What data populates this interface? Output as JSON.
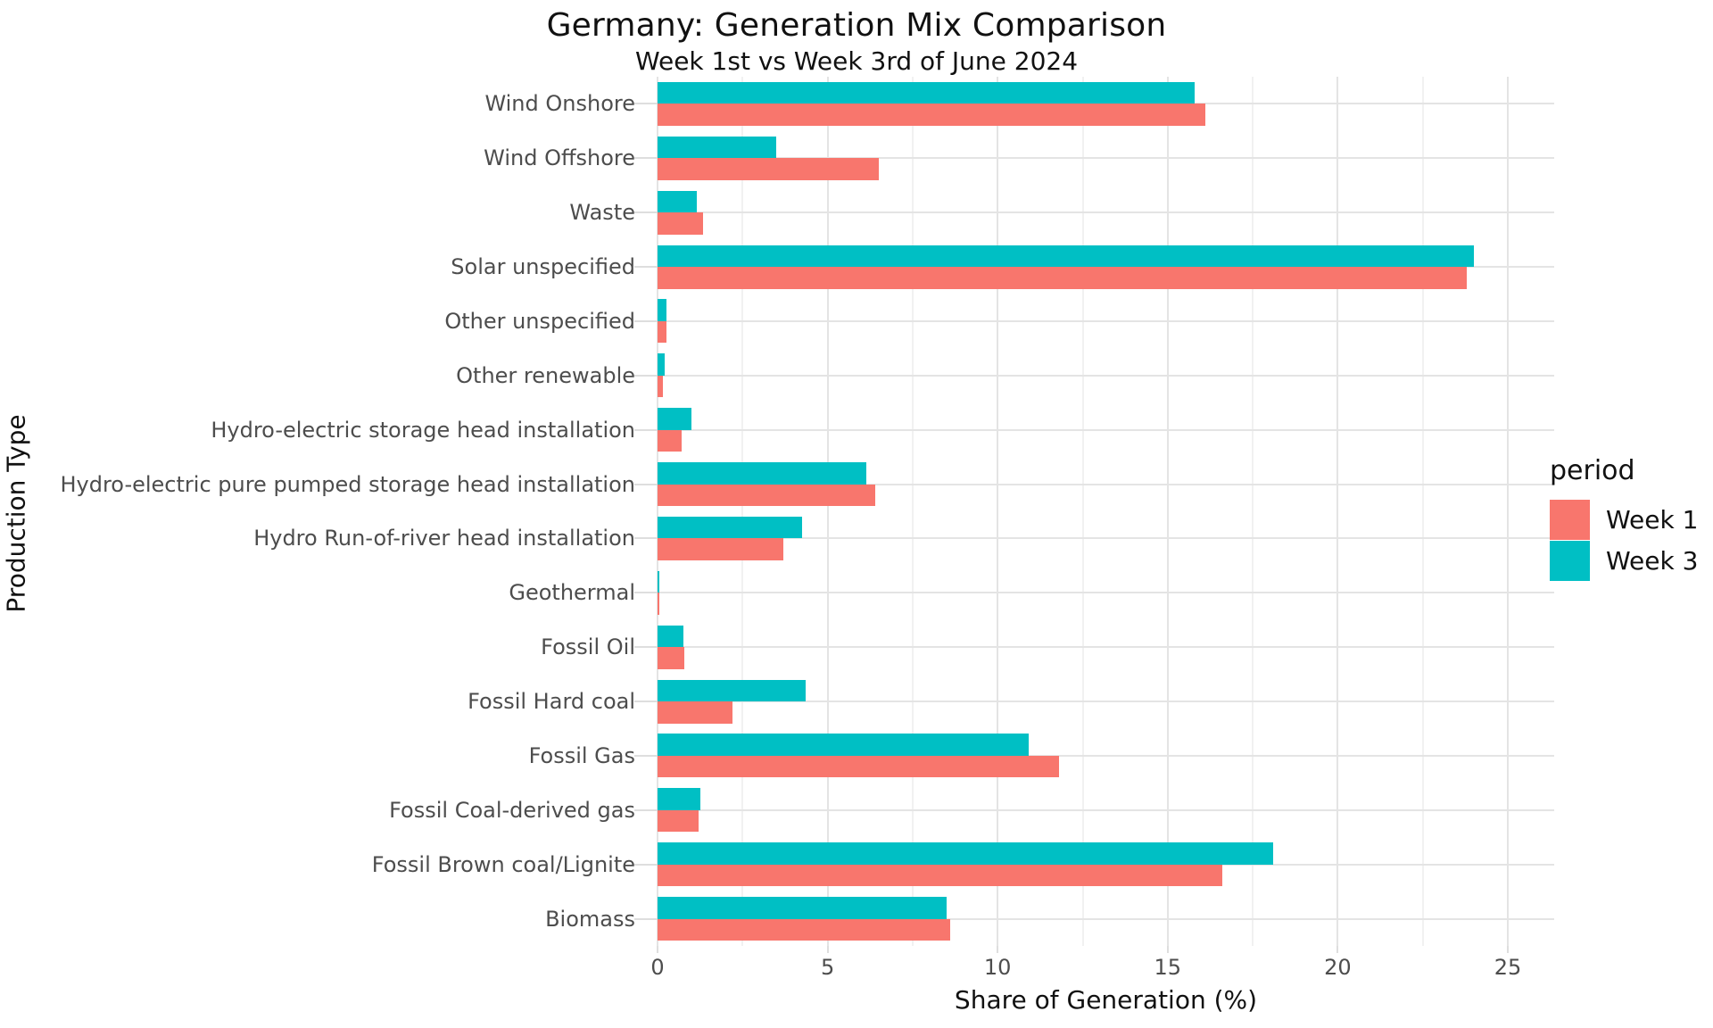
{
  "chart_data": {
    "type": "bar",
    "orientation": "horizontal",
    "title": "Germany: Generation Mix Comparison",
    "subtitle": "Week 1st vs Week 3rd of June 2024",
    "xlabel": "Share of Generation (%)",
    "ylabel": "Production Type",
    "xlim": [
      0,
      26.3
    ],
    "x_major_ticks": [
      0,
      5,
      10,
      15,
      20,
      25
    ],
    "x_minor_ticks": [
      2.5,
      7.5,
      12.5,
      17.5,
      22.5
    ],
    "grid": {
      "major_color": "#e4e4e4",
      "minor_color": "#f1f1f1"
    },
    "categories": [
      "Wind Onshore",
      "Wind Offshore",
      "Waste",
      "Solar unspecified",
      "Other unspecified",
      "Other renewable",
      "Hydro-electric storage head installation",
      "Hydro-electric pure pumped storage head installation",
      "Hydro Run-of-river head installation",
      "Geothermal",
      "Fossil Oil",
      "Fossil Hard coal",
      "Fossil Gas",
      "Fossil Coal-derived gas",
      "Fossil Brown coal/Lignite",
      "Biomass"
    ],
    "series": [
      {
        "name": "Week 1",
        "color": "#F8766D",
        "values": [
          16.1,
          6.5,
          1.35,
          23.8,
          0.25,
          0.15,
          0.7,
          6.4,
          3.7,
          0.05,
          0.8,
          2.2,
          11.8,
          1.2,
          16.6,
          8.6
        ]
      },
      {
        "name": "Week 3",
        "color": "#00BFC4",
        "values": [
          15.8,
          3.5,
          1.15,
          24.0,
          0.25,
          0.2,
          1.0,
          6.15,
          4.25,
          0.05,
          0.75,
          4.35,
          10.9,
          1.25,
          18.1,
          8.5
        ]
      }
    ],
    "legend": {
      "title": "period",
      "position": "right"
    }
  }
}
